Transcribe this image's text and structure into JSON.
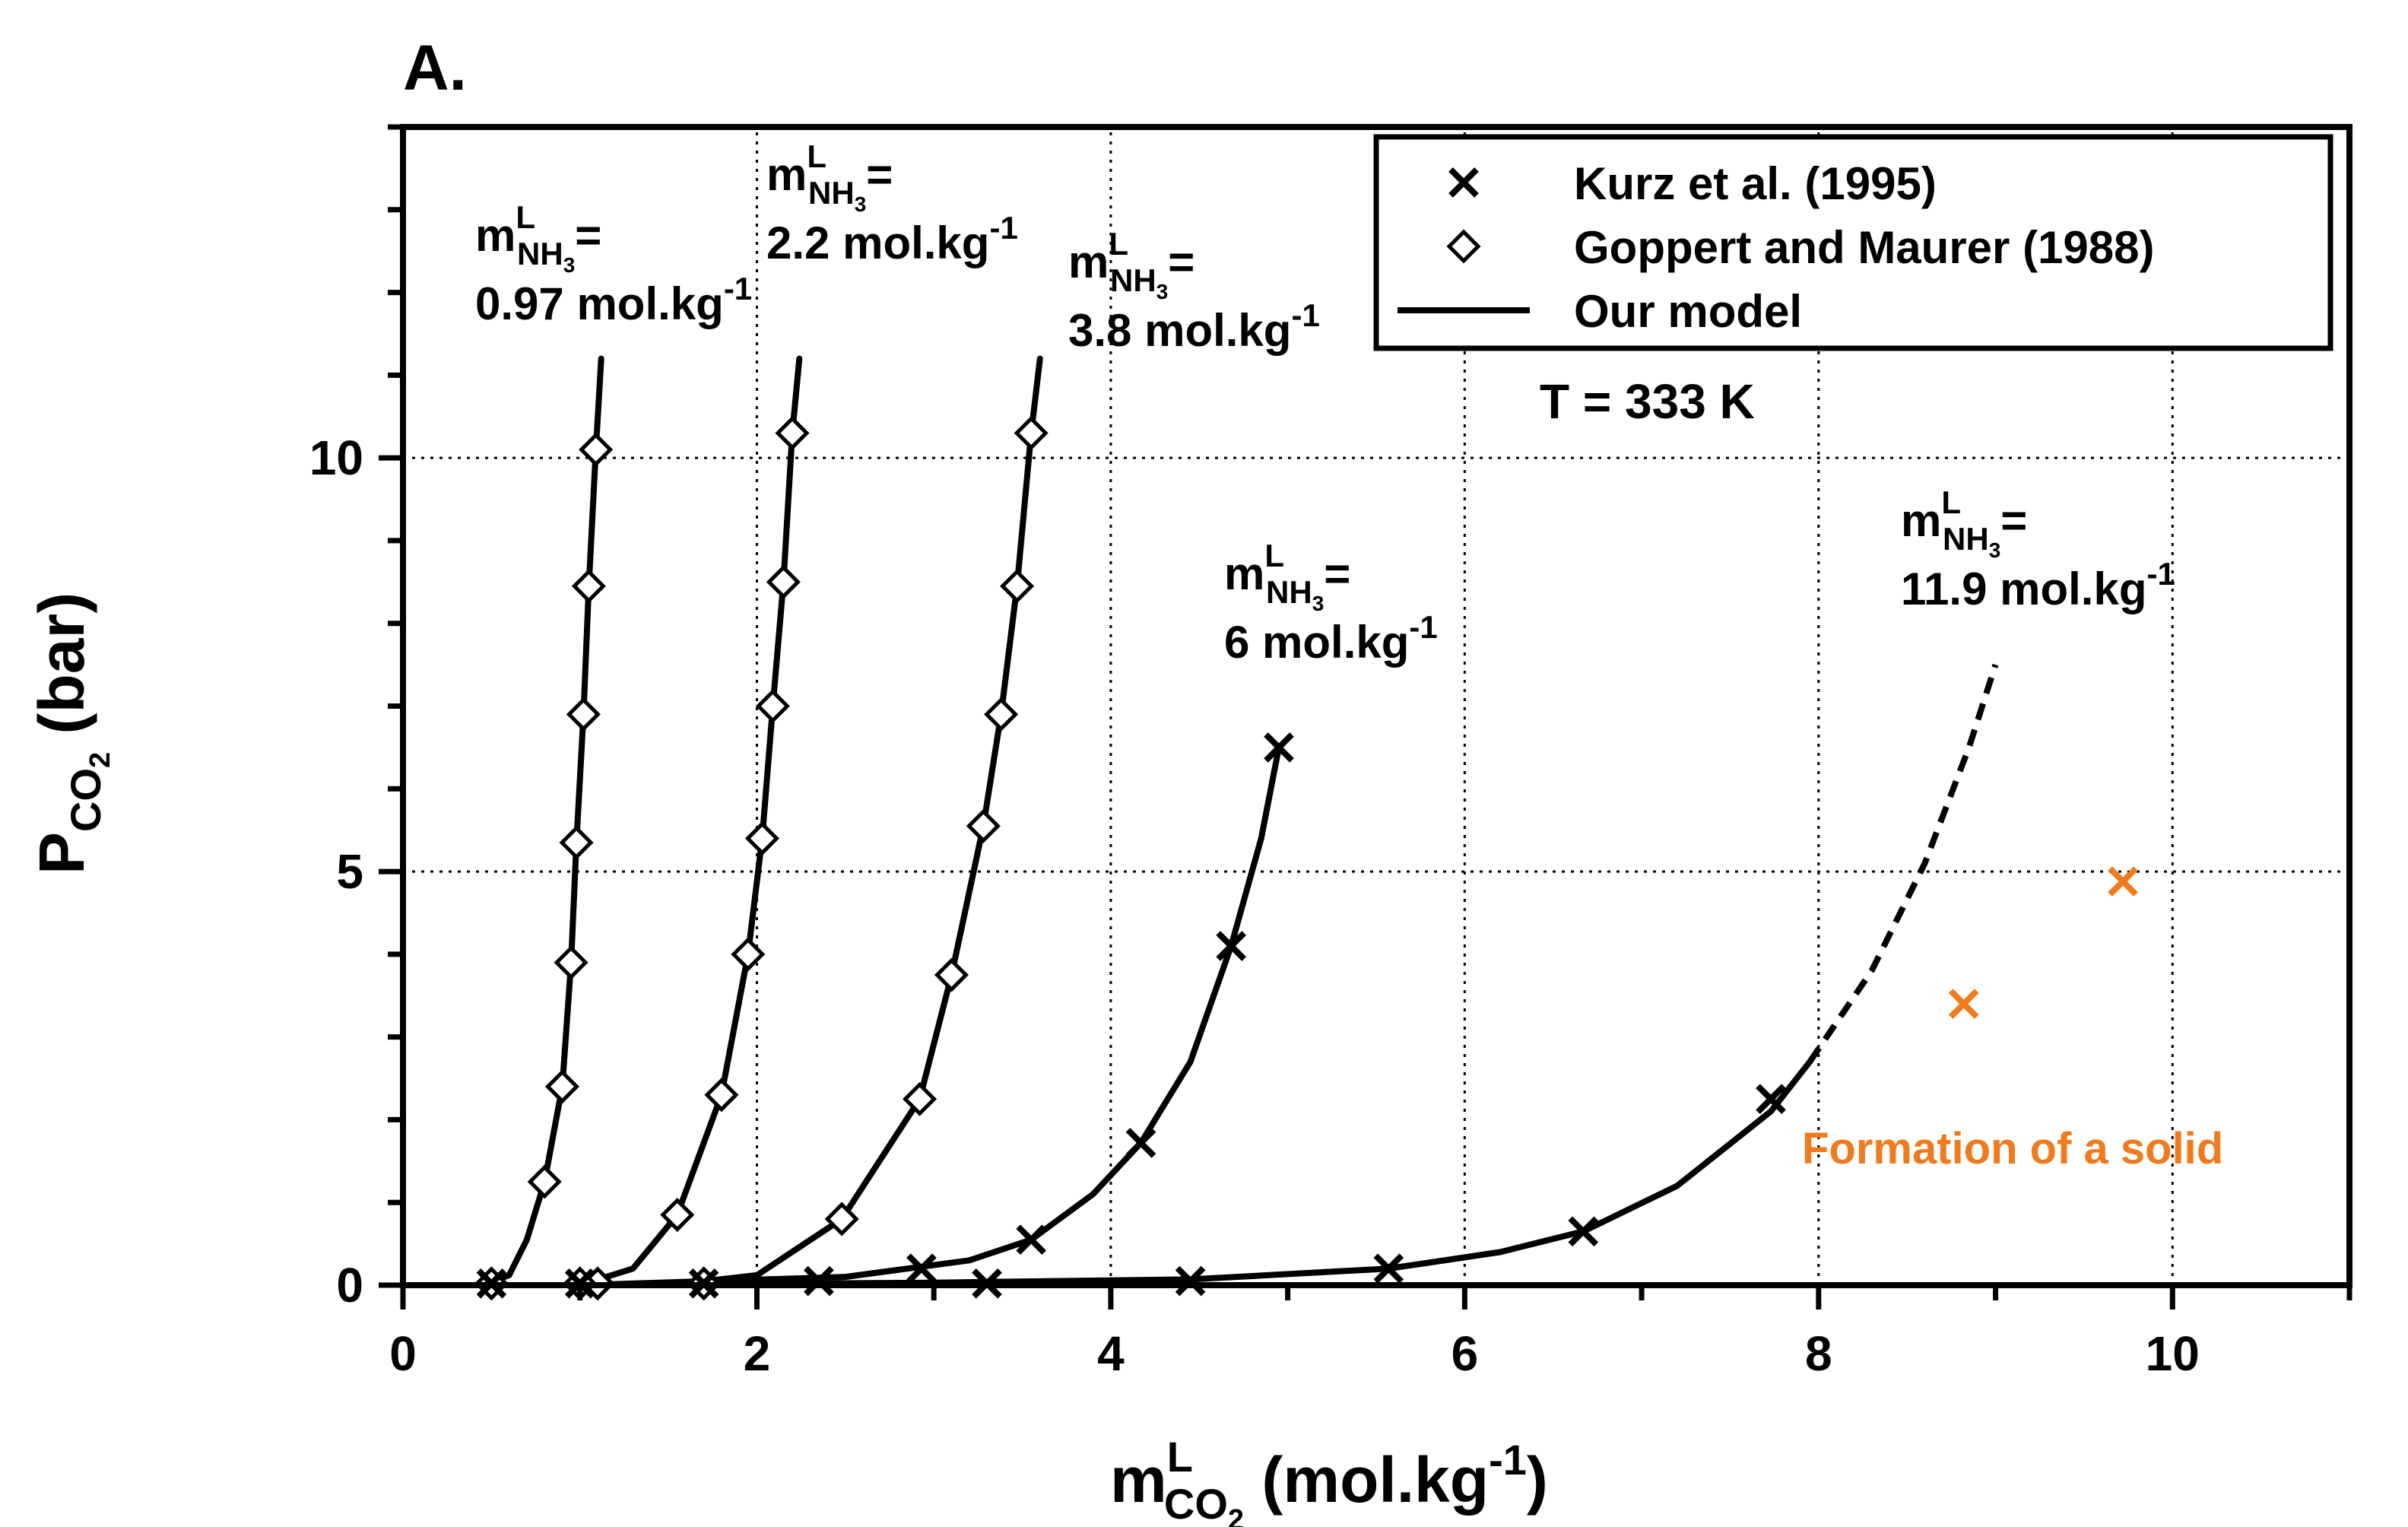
{
  "chart_data": {
    "type": "scatter",
    "panel_label": "A.",
    "title": "",
    "xlabel": {
      "main": "m",
      "sup": "L",
      "sub": "CO",
      "sub2": "2",
      "unit": " (mol.kg",
      "unit_sup": "-1",
      "unit_end": ")"
    },
    "ylabel": {
      "main": "P",
      "sub": "CO",
      "sub2": "2",
      "unit": " (bar)"
    },
    "xlim": [
      0,
      11
    ],
    "ylim": [
      0,
      14
    ],
    "xticks": [
      0,
      2,
      4,
      6,
      8,
      10
    ],
    "xtick_labels": [
      "0",
      "2",
      "4",
      "6",
      "8",
      "10"
    ],
    "yticks": [
      0,
      5,
      10
    ],
    "ytick_labels": [
      "0",
      "5",
      "10"
    ],
    "grid": true,
    "temperature_label": "T = 333 K",
    "legend": {
      "position": "top-right",
      "entries": [
        {
          "marker": "cross",
          "label": "Kurz et al. (1995)"
        },
        {
          "marker": "diamond",
          "label": "Goppert and Maurer (1988)"
        },
        {
          "marker": "line",
          "label": "Our model"
        }
      ]
    },
    "solid_annotation": {
      "text": "Formation of a solid",
      "color": "#F07A1C"
    },
    "colors": {
      "data": "#000000",
      "solid": "#F07A1C",
      "grid": "#000000"
    },
    "series": [
      {
        "name": "0.97 mol.kg-1",
        "conc_value": "0.97",
        "conc_unit": " mol.kg",
        "conc_sup": "-1",
        "marker": "diamond",
        "points": [
          [
            0.5,
            0.02
          ],
          [
            0.8,
            1.25
          ],
          [
            0.9,
            2.4
          ],
          [
            0.95,
            3.9
          ],
          [
            0.98,
            5.35
          ],
          [
            1.02,
            6.9
          ],
          [
            1.05,
            8.45
          ],
          [
            1.09,
            10.1
          ],
          [
            1.1,
            0.02
          ]
        ],
        "curve": [
          [
            0.45,
            0.0
          ],
          [
            0.6,
            0.12
          ],
          [
            0.7,
            0.55
          ],
          [
            0.8,
            1.25
          ],
          [
            0.9,
            2.4
          ],
          [
            0.95,
            3.9
          ],
          [
            0.98,
            5.35
          ],
          [
            1.02,
            6.9
          ],
          [
            1.05,
            8.45
          ],
          [
            1.09,
            10.1
          ],
          [
            1.12,
            11.2
          ]
        ],
        "curve_dashed": []
      },
      {
        "name": "2.2 mol.kg-1",
        "conc_value": "2.2",
        "conc_unit": " mol.kg",
        "conc_sup": "-1",
        "marker": "diamond",
        "points": [
          [
            1.0,
            0.02
          ],
          [
            1.55,
            0.85
          ],
          [
            1.8,
            2.3
          ],
          [
            1.95,
            4.0
          ],
          [
            2.03,
            5.4
          ],
          [
            2.09,
            7.0
          ],
          [
            2.15,
            8.5
          ],
          [
            2.2,
            10.3
          ]
        ],
        "curve": [
          [
            1.0,
            0.0
          ],
          [
            1.3,
            0.2
          ],
          [
            1.55,
            0.85
          ],
          [
            1.8,
            2.3
          ],
          [
            1.95,
            4.0
          ],
          [
            2.03,
            5.4
          ],
          [
            2.09,
            7.0
          ],
          [
            2.15,
            8.5
          ],
          [
            2.2,
            10.3
          ],
          [
            2.24,
            11.2
          ]
        ],
        "curve_dashed": []
      },
      {
        "name": "3.8 mol.kg-1",
        "conc_value": "3.8",
        "conc_unit": " mol.kg",
        "conc_sup": "-1",
        "marker": "diamond",
        "points": [
          [
            1.7,
            0.02
          ],
          [
            2.48,
            0.8
          ],
          [
            2.92,
            2.25
          ],
          [
            3.1,
            3.75
          ],
          [
            3.28,
            5.55
          ],
          [
            3.38,
            6.9
          ],
          [
            3.47,
            8.45
          ],
          [
            3.55,
            10.3
          ]
        ],
        "curve": [
          [
            1.5,
            0.0
          ],
          [
            2.0,
            0.12
          ],
          [
            2.48,
            0.8
          ],
          [
            2.92,
            2.25
          ],
          [
            3.1,
            3.75
          ],
          [
            3.28,
            5.55
          ],
          [
            3.38,
            6.9
          ],
          [
            3.47,
            8.45
          ],
          [
            3.55,
            10.3
          ],
          [
            3.6,
            11.2
          ]
        ],
        "curve_dashed": []
      },
      {
        "name": "6 mol.kg-1",
        "conc_value": "6",
        "conc_unit": " mol.kg",
        "conc_sup": "-1",
        "marker": "cross",
        "points": [
          [
            2.35,
            0.05
          ],
          [
            2.93,
            0.2
          ],
          [
            3.3,
            0.02
          ],
          [
            3.55,
            0.55
          ],
          [
            4.17,
            1.72
          ],
          [
            4.68,
            4.1
          ],
          [
            4.95,
            6.5
          ]
        ],
        "curve": [
          [
            1.0,
            0.0
          ],
          [
            2.5,
            0.1
          ],
          [
            3.2,
            0.3
          ],
          [
            3.55,
            0.55
          ],
          [
            3.9,
            1.1
          ],
          [
            4.17,
            1.72
          ],
          [
            4.45,
            2.7
          ],
          [
            4.68,
            4.1
          ],
          [
            4.85,
            5.4
          ],
          [
            4.95,
            6.5
          ]
        ],
        "curve_dashed": []
      },
      {
        "name": "11.9 mol.kg-1",
        "conc_value": "11.9",
        "conc_unit": " mol.kg",
        "conc_sup": "-1",
        "marker": "cross",
        "points": [
          [
            4.45,
            0.05
          ],
          [
            5.57,
            0.2
          ],
          [
            6.67,
            0.65
          ],
          [
            7.73,
            2.25
          ]
        ],
        "curve": [
          [
            1.0,
            0.0
          ],
          [
            3.0,
            0.03
          ],
          [
            4.45,
            0.07
          ],
          [
            5.57,
            0.2
          ],
          [
            6.2,
            0.4
          ],
          [
            6.67,
            0.65
          ],
          [
            7.2,
            1.2
          ],
          [
            7.73,
            2.1
          ],
          [
            7.95,
            2.7
          ]
        ],
        "curve_dashed": [
          [
            7.95,
            2.7
          ],
          [
            8.3,
            3.8
          ],
          [
            8.6,
            5.1
          ],
          [
            8.85,
            6.5
          ],
          [
            9.0,
            7.5
          ]
        ]
      }
    ],
    "solid_points": [
      [
        8.82,
        3.4
      ],
      [
        9.72,
        4.88
      ]
    ]
  }
}
